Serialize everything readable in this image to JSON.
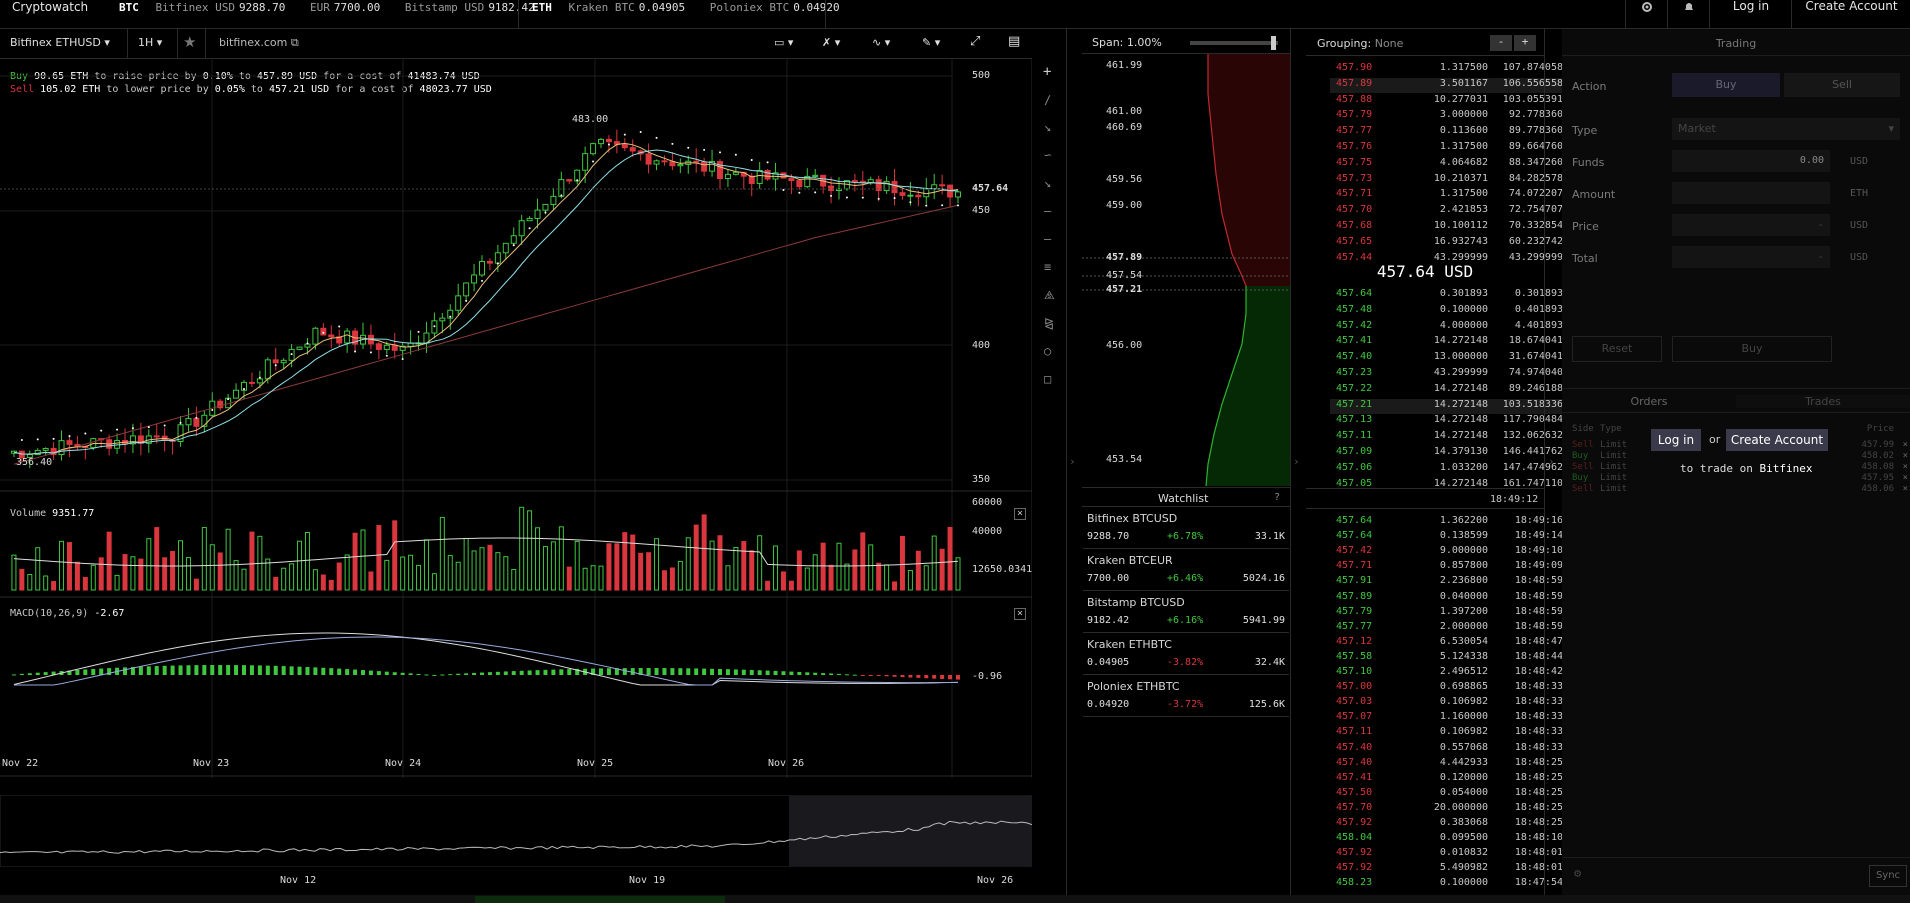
{
  "topbar": {
    "brand": "Cryptowatch",
    "btc_label": "BTC",
    "btc_tickers": [
      {
        "name": "Bitfinex USD",
        "value": "9288.70"
      },
      {
        "name": "EUR",
        "value": "7700.00"
      },
      {
        "name": "Bitstamp USD",
        "value": "9182.42"
      }
    ],
    "eth_label": "ETH",
    "eth_tickers": [
      {
        "name": "Kraken BTC",
        "value": "0.04905"
      },
      {
        "name": "Poloniex BTC",
        "value": "0.04920"
      }
    ],
    "login": "Log in",
    "create_account": "Create Account"
  },
  "chart": {
    "market": "Bitfinex ETHUSD",
    "interval": "1H",
    "exchange_link": "bitfinex.com",
    "buy_line": {
      "label": "Buy",
      "amount": "90.65 ETH",
      "t1": "to raise price by",
      "pct": "0.10%",
      "t2": "to",
      "price": "457.89 USD",
      "t3": "for a cost of",
      "cost": "41483.74 USD"
    },
    "sell_line": {
      "label": "Sell",
      "amount": "105.02 ETH",
      "t1": "to lower price by",
      "pct": "0.05%",
      "t2": "to",
      "price": "457.21 USD",
      "t3": "for a cost of",
      "cost": "48023.77 USD"
    },
    "price_axis": [
      "500",
      "450",
      "400",
      "350"
    ],
    "last_price_tag": "457.64",
    "high_label": "483.00",
    "low_label": "356.40",
    "volume_label": "Volume",
    "volume_value": "9351.77",
    "volume_axis": [
      "60000",
      "40000",
      "12650.0341"
    ],
    "macd_label": "MACD(10,26,9)",
    "macd_value": "-2.67",
    "macd_axis": "-0.96",
    "date_axis": [
      "Nov 22",
      "Nov 23",
      "Nov 24",
      "Nov 25",
      "Nov 26"
    ],
    "overview_axis": [
      "Nov 12",
      "Nov 19",
      "Nov 26"
    ]
  },
  "depth": {
    "span_label": "Span:",
    "span_value": "1.00%",
    "axis": [
      "461.99",
      "461.00",
      "460.69",
      "459.56",
      "459.00",
      "457.89",
      "457.54",
      "457.21",
      "456.00",
      "453.54"
    ]
  },
  "watchlist": {
    "title": "Watchlist",
    "help": "?",
    "items": [
      {
        "name": "Bitfinex BTCUSD",
        "price": "9288.70",
        "change": "+6.78%",
        "volume": "33.1K",
        "up": true
      },
      {
        "name": "Kraken BTCEUR",
        "price": "7700.00",
        "change": "+6.46%",
        "volume": "5024.16",
        "up": true
      },
      {
        "name": "Bitstamp BTCUSD",
        "price": "9182.42",
        "change": "+6.16%",
        "volume": "5941.99",
        "up": true
      },
      {
        "name": "Kraken ETHBTC",
        "price": "0.04905",
        "change": "-3.82%",
        "volume": "32.4K",
        "up": false
      },
      {
        "name": "Poloniex ETHBTC",
        "price": "0.04920",
        "change": "-3.72%",
        "volume": "125.6K",
        "up": false
      }
    ]
  },
  "orderbook": {
    "grouping_label": "Grouping:",
    "grouping_value": "None",
    "minus": "-",
    "plus": "+",
    "mid_price": "457.64 USD",
    "asks": [
      [
        "457.90",
        "1.317500",
        "107.874058"
      ],
      [
        "457.89",
        "3.501167",
        "106.556558"
      ],
      [
        "457.88",
        "10.277031",
        "103.055391"
      ],
      [
        "457.79",
        "3.000000",
        "92.778360"
      ],
      [
        "457.77",
        "0.113600",
        "89.778360"
      ],
      [
        "457.76",
        "1.317500",
        "89.664760"
      ],
      [
        "457.75",
        "4.064682",
        "88.347260"
      ],
      [
        "457.73",
        "10.210371",
        "84.282578"
      ],
      [
        "457.71",
        "1.317500",
        "74.072207"
      ],
      [
        "457.70",
        "2.421853",
        "72.754707"
      ],
      [
        "457.68",
        "10.100112",
        "70.332854"
      ],
      [
        "457.65",
        "16.932743",
        "60.232742"
      ],
      [
        "457.44",
        "43.299999",
        "43.299999"
      ]
    ],
    "bids": [
      [
        "457.64",
        "0.301893",
        "0.301893"
      ],
      [
        "457.48",
        "0.100000",
        "0.401893"
      ],
      [
        "457.42",
        "4.000000",
        "4.401893"
      ],
      [
        "457.41",
        "14.272148",
        "18.674041"
      ],
      [
        "457.40",
        "13.000000",
        "31.674041"
      ],
      [
        "457.23",
        "43.299999",
        "74.974040"
      ],
      [
        "457.22",
        "14.272148",
        "89.246188"
      ],
      [
        "457.21",
        "14.272148",
        "103.518336"
      ],
      [
        "457.13",
        "14.272148",
        "117.790484"
      ],
      [
        "457.11",
        "14.272148",
        "132.062632"
      ],
      [
        "457.09",
        "14.379130",
        "146.441762"
      ],
      [
        "457.06",
        "1.033200",
        "147.474962"
      ],
      [
        "457.05",
        "14.272148",
        "161.747110"
      ]
    ],
    "last_update": "18:49:12"
  },
  "trades": [
    [
      "457.64",
      "1.362200",
      "18:49:16",
      "g"
    ],
    [
      "457.64",
      "0.138599",
      "18:49:14",
      "g"
    ],
    [
      "457.42",
      "9.000000",
      "18:49:10",
      "r"
    ],
    [
      "457.71",
      "0.857800",
      "18:49:09",
      "r"
    ],
    [
      "457.91",
      "2.236800",
      "18:48:59",
      "g"
    ],
    [
      "457.89",
      "0.040000",
      "18:48:59",
      "g"
    ],
    [
      "457.79",
      "1.397200",
      "18:48:59",
      "g"
    ],
    [
      "457.77",
      "2.000000",
      "18:48:59",
      "g"
    ],
    [
      "457.12",
      "6.530054",
      "18:48:47",
      "r"
    ],
    [
      "457.58",
      "5.124338",
      "18:48:44",
      "g"
    ],
    [
      "457.10",
      "2.496512",
      "18:48:42",
      "g"
    ],
    [
      "457.00",
      "0.698865",
      "18:48:33",
      "r"
    ],
    [
      "457.03",
      "0.106982",
      "18:48:33",
      "r"
    ],
    [
      "457.07",
      "1.160000",
      "18:48:33",
      "r"
    ],
    [
      "457.11",
      "0.106982",
      "18:48:33",
      "r"
    ],
    [
      "457.40",
      "0.557068",
      "18:48:33",
      "r"
    ],
    [
      "457.40",
      "4.442933",
      "18:48:25",
      "r"
    ],
    [
      "457.41",
      "0.120000",
      "18:48:25",
      "r"
    ],
    [
      "457.50",
      "0.054000",
      "18:48:25",
      "r"
    ],
    [
      "457.70",
      "20.000000",
      "18:48:25",
      "r"
    ],
    [
      "457.92",
      "0.383068",
      "18:48:25",
      "r"
    ],
    [
      "458.04",
      "0.099500",
      "18:48:10",
      "g"
    ],
    [
      "457.92",
      "0.010832",
      "18:48:01",
      "r"
    ],
    [
      "457.92",
      "5.490982",
      "18:48:01",
      "r"
    ],
    [
      "458.23",
      "0.100000",
      "18:47:54",
      "g"
    ]
  ],
  "trading": {
    "title": "Trading",
    "action_label": "Action",
    "buy_tab": "Buy",
    "sell_tab": "Sell",
    "type_label": "Type",
    "type_value": "Market",
    "funds_label": "Funds",
    "funds_value": "0.00",
    "funds_unit": "USD",
    "amount_label": "Amount",
    "amount_unit": "ETH",
    "price_label": "Price",
    "price_value": "-",
    "price_unit": "USD",
    "total_label": "Total",
    "total_value": "-",
    "total_unit": "USD",
    "reset": "Reset",
    "buy_button": "Buy",
    "orders_tab": "Orders",
    "trades_tab": "Trades",
    "login": "Log in",
    "or": "or",
    "create_account": "Create Account",
    "trade_on": "to trade on",
    "exchange": "Bitfinex",
    "order_cols": [
      "Side",
      "Type",
      "Price"
    ],
    "orders": [
      [
        "Sell",
        "Limit",
        "457.99"
      ],
      [
        "Buy",
        "Limit",
        "458.02"
      ],
      [
        "Sell",
        "Limit",
        "458.08"
      ],
      [
        "Buy",
        "Limit",
        "457.95"
      ],
      [
        "Sell",
        "Limit",
        "458.06"
      ]
    ],
    "sync": "Sync"
  },
  "colors": {
    "up": "#3fc73f",
    "down": "#d9363e",
    "bg": "#000000",
    "panel": "#0a0a0a"
  }
}
